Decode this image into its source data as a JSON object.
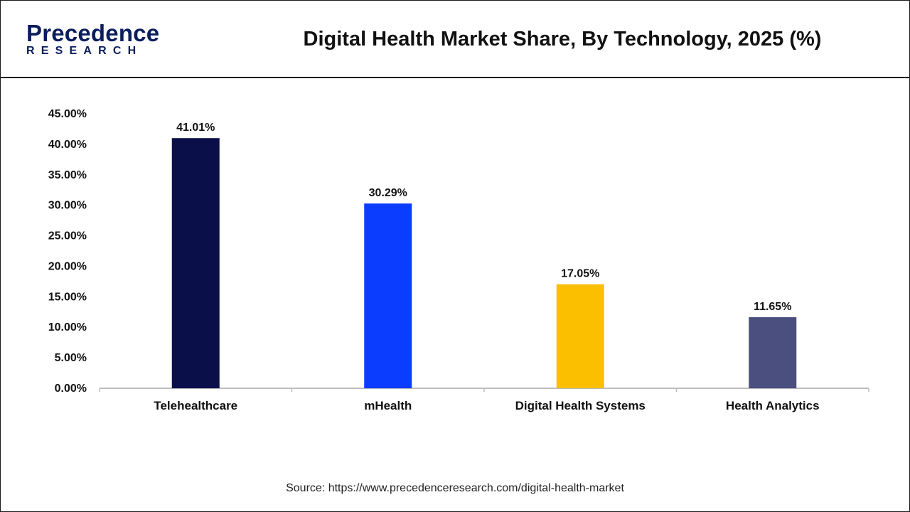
{
  "brand": {
    "name": "Precedence",
    "sub": "RESEARCH",
    "color": "#0b1d5c"
  },
  "source_text": "Source: https://www.precedenceresearch.com/digital-health-market",
  "chart_data": {
    "type": "bar",
    "title": "Digital Health Market Share, By Technology, 2025 (%)",
    "xlabel": "",
    "ylabel": "",
    "categories": [
      "Telehealthcare",
      "mHealth",
      "Digital Health Systems",
      "Health Analytics"
    ],
    "values": [
      41.01,
      30.29,
      17.05,
      11.65
    ],
    "value_labels": [
      "41.01%",
      "30.29%",
      "17.05%",
      "11.65%"
    ],
    "colors": [
      "#0a0f4a",
      "#0a3dff",
      "#fbbf00",
      "#4a4f80"
    ],
    "ylim": [
      0,
      45
    ],
    "yticks": [
      0,
      5,
      10,
      15,
      20,
      25,
      30,
      35,
      40,
      45
    ],
    "ytick_labels": [
      "0.00%",
      "5.00%",
      "10.00%",
      "15.00%",
      "20.00%",
      "25.00%",
      "30.00%",
      "35.00%",
      "40.00%",
      "45.00%"
    ],
    "grid": false,
    "legend": "none"
  }
}
